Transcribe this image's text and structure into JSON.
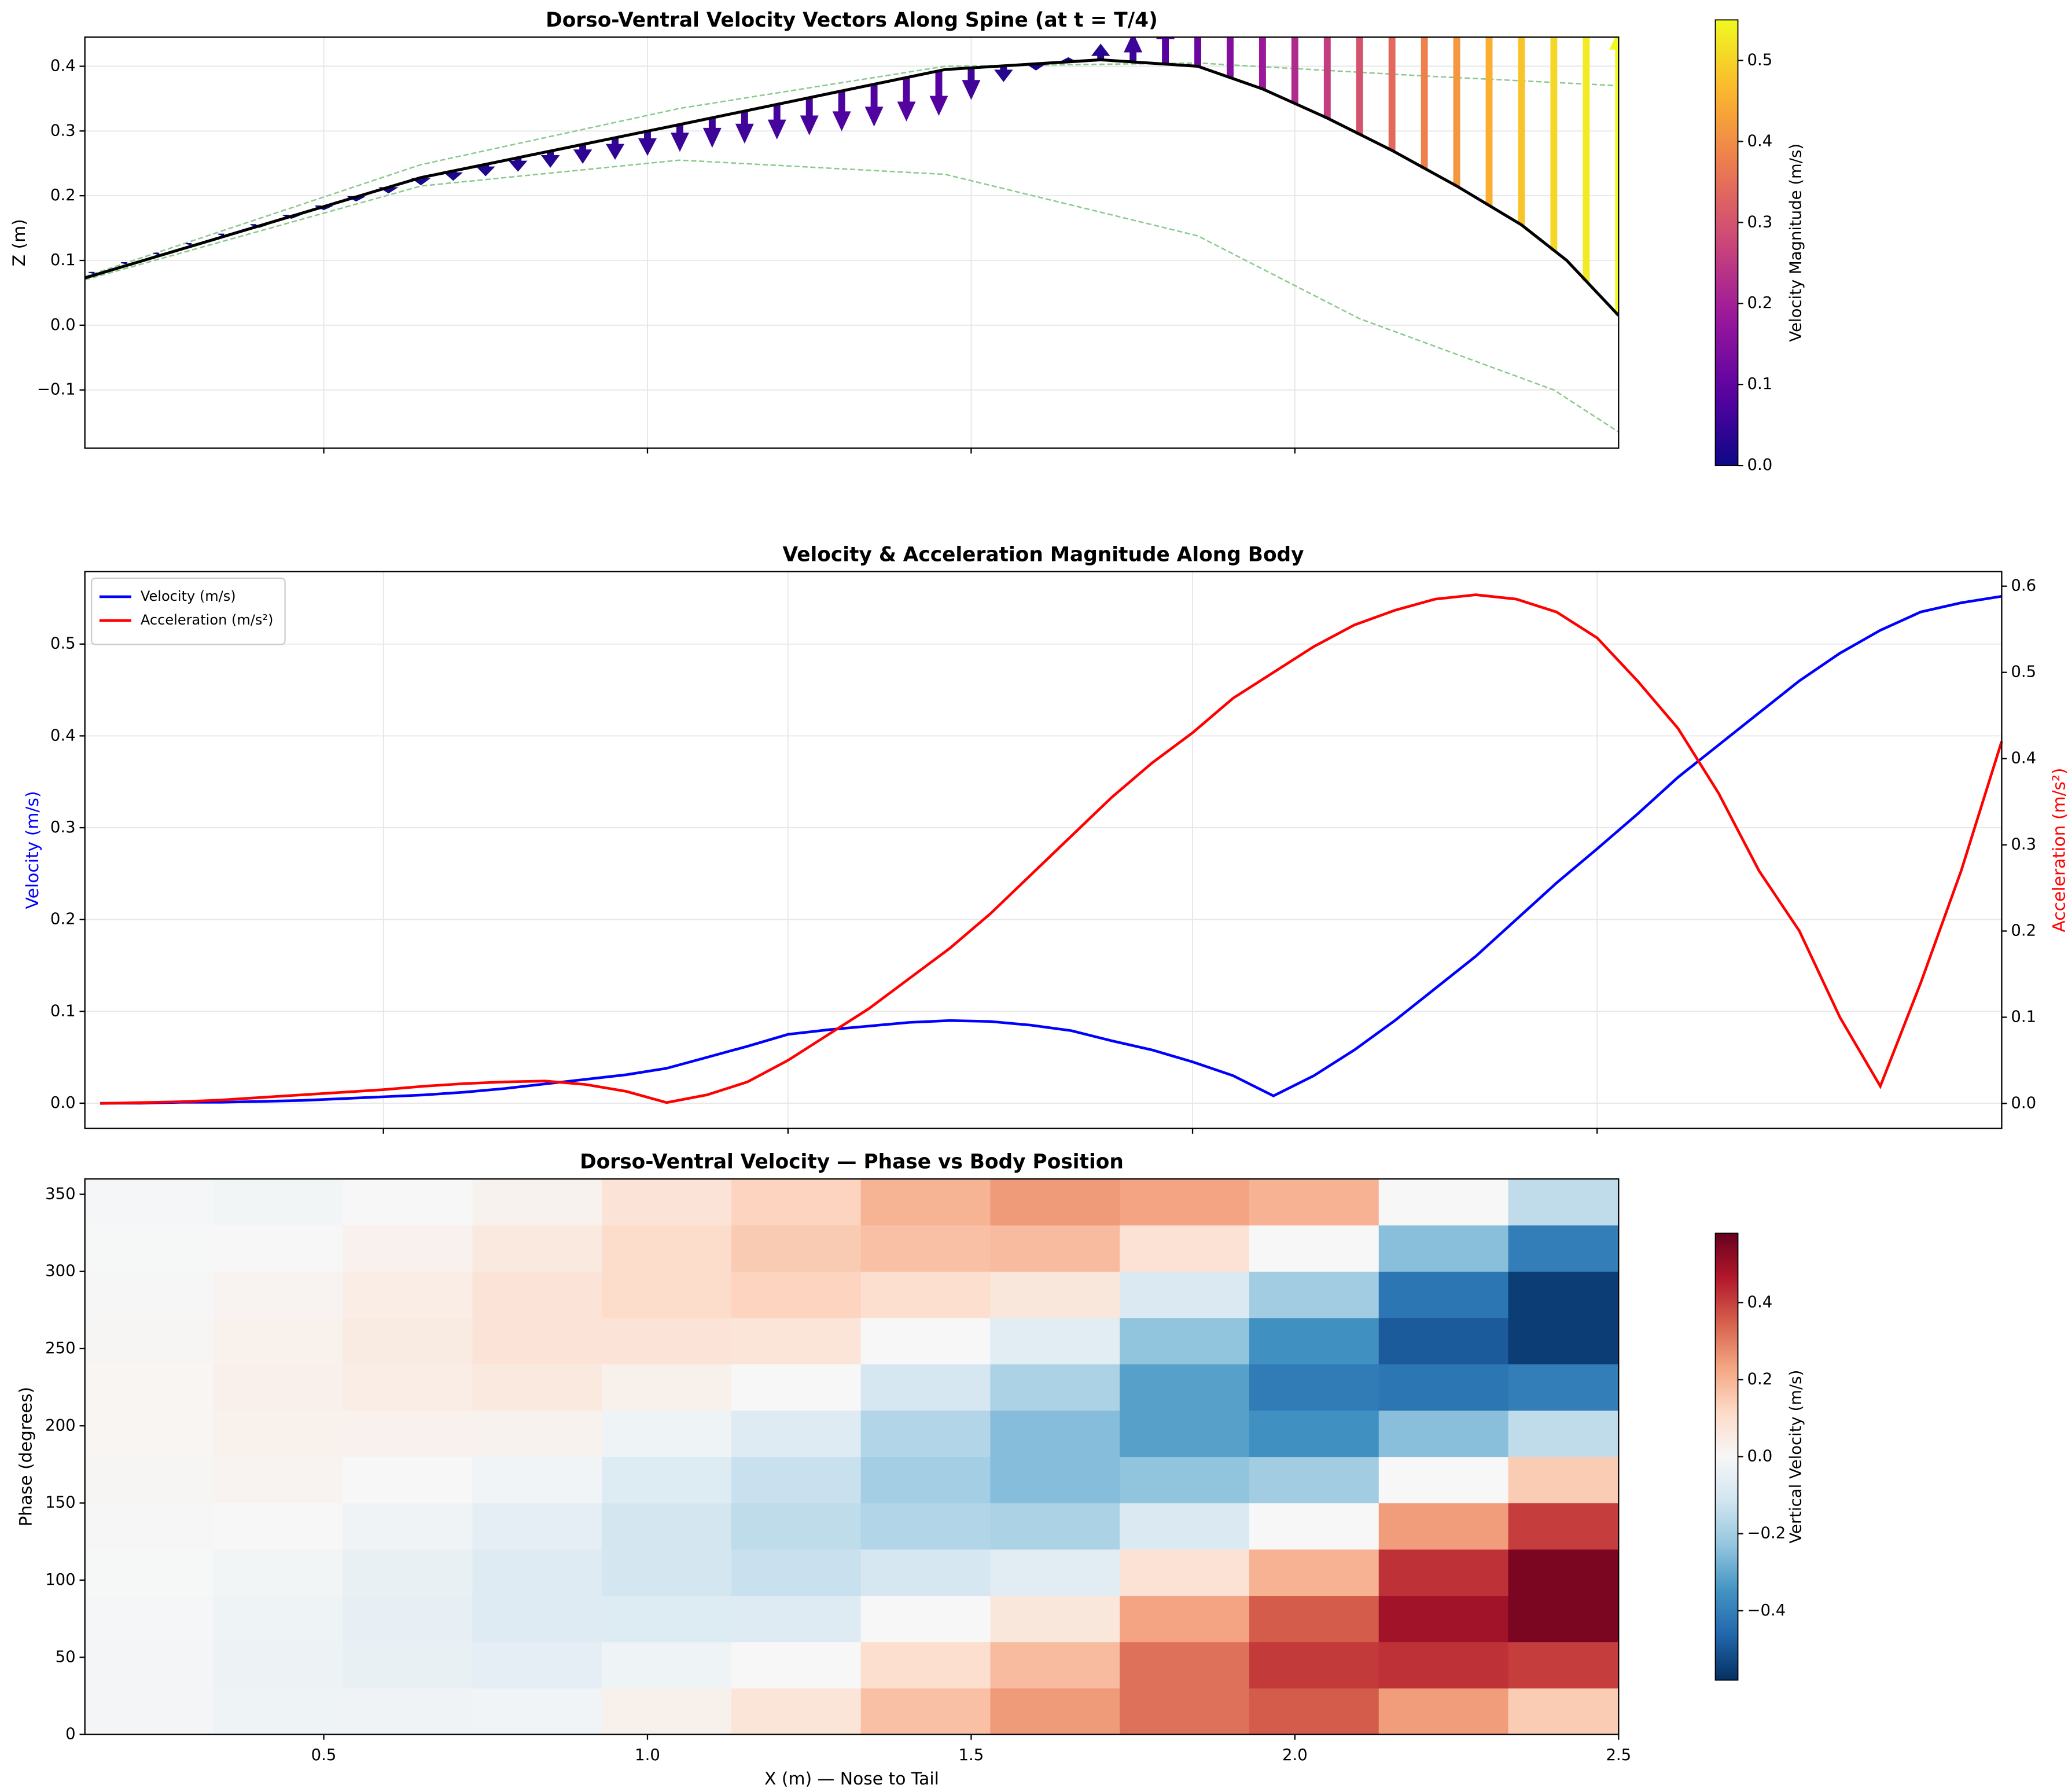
{
  "chart_data": [
    {
      "type": "quiver",
      "title": "Dorso-Ventral Velocity Vectors Along Spine (at t = T/4)",
      "ylabel": "Z (m)",
      "xlim": [
        0.131,
        2.5
      ],
      "ylim": [
        -0.19,
        0.445
      ],
      "xticks": [
        0.5,
        1,
        1.5,
        2
      ],
      "show_xtick_labels": false,
      "yticks": [
        {
          "value": -0.1,
          "label": "−0.1"
        },
        {
          "value": 0,
          "label": "0.0"
        },
        0.1,
        0.2,
        0.3,
        0.4
      ],
      "grid": true,
      "spine": {
        "color": "#000000",
        "x": [
          0.131,
          0.65,
          1.05,
          1.46,
          1.7,
          1.85,
          1.95,
          2.05,
          2.15,
          2.25,
          2.35,
          2.42,
          2.5
        ],
        "z": [
          0.073,
          0.228,
          0.31,
          0.395,
          0.41,
          0.4,
          0.365,
          0.32,
          0.27,
          0.215,
          0.155,
          0.1,
          0.015
        ]
      },
      "envelope_color": "#8cc98c",
      "envelope": [
        {
          "x": [
            0.131,
            0.65,
            1.05,
            1.46,
            1.85,
            2.2,
            2.5
          ],
          "z": [
            0.075,
            0.248,
            0.335,
            0.4,
            0.405,
            0.385,
            0.37
          ]
        },
        {
          "x": [
            0.131,
            0.65,
            1.05,
            1.46,
            1.85,
            2.1,
            2.4,
            2.5
          ],
          "z": [
            0.07,
            0.215,
            0.255,
            0.233,
            0.138,
            0.01,
            -0.1,
            -0.165
          ]
        }
      ],
      "arrows": {
        "x": [
          0.15,
          0.2,
          0.25,
          0.3,
          0.35,
          0.4,
          0.45,
          0.5,
          0.55,
          0.6,
          0.65,
          0.7,
          0.75,
          0.8,
          0.85,
          0.9,
          0.95,
          1.0,
          1.05,
          1.1,
          1.15,
          1.2,
          1.25,
          1.3,
          1.35,
          1.4,
          1.45,
          1.5,
          1.55,
          1.6,
          1.65,
          1.7,
          1.75,
          1.8,
          1.85,
          1.9,
          1.95,
          2.0,
          2.05,
          2.1,
          2.15,
          2.2,
          2.25,
          2.3,
          2.35,
          2.4,
          2.45,
          2.5
        ],
        "w": [
          0,
          0,
          -0.001,
          -0.001,
          -0.002,
          -0.003,
          -0.004,
          -0.006,
          -0.008,
          -0.011,
          -0.014,
          -0.018,
          -0.022,
          -0.026,
          -0.031,
          -0.036,
          -0.041,
          -0.046,
          -0.051,
          -0.056,
          -0.061,
          -0.066,
          -0.071,
          -0.076,
          -0.08,
          -0.083,
          -0.085,
          -0.06,
          -0.03,
          -0.012,
          0.008,
          0.03,
          0.055,
          0.085,
          0.115,
          0.15,
          0.185,
          0.22,
          0.26,
          0.3,
          0.34,
          0.38,
          0.415,
          0.45,
          0.48,
          0.505,
          0.53,
          0.55
        ]
      },
      "cmap": "plasma",
      "clim": [
        0,
        0.55
      ],
      "colorbar_label": "Velocity Magnitude (m/s)",
      "colorbar_ticks": [
        {
          "value": 0,
          "label": "0.0"
        },
        0.1,
        0.2,
        0.3,
        0.4,
        0.5
      ]
    },
    {
      "type": "line",
      "title": "Velocity & Acceleration Magnitude Along Body",
      "ylabel": "Velocity (m/s)",
      "y2label": "Acceleration (m/s²)",
      "x": [
        0.15,
        0.2,
        0.25,
        0.3,
        0.35,
        0.4,
        0.45,
        0.5,
        0.55,
        0.6,
        0.65,
        0.7,
        0.75,
        0.8,
        0.85,
        0.9,
        0.95,
        1.0,
        1.05,
        1.1,
        1.15,
        1.2,
        1.25,
        1.3,
        1.35,
        1.4,
        1.45,
        1.5,
        1.55,
        1.6,
        1.65,
        1.7,
        1.75,
        1.8,
        1.85,
        1.9,
        1.95,
        2.0,
        2.05,
        2.1,
        2.15,
        2.2,
        2.25,
        2.3,
        2.35,
        2.4,
        2.45,
        2.5
      ],
      "series": [
        {
          "name": "Velocity (m/s)",
          "color": "#0000ff",
          "values": [
            0,
            0,
            0.001,
            0.001,
            0.002,
            0.003,
            0.005,
            0.007,
            0.009,
            0.012,
            0.016,
            0.021,
            0.026,
            0.031,
            0.038,
            0.05,
            0.062,
            0.075,
            0.08,
            0.084,
            0.088,
            0.09,
            0.089,
            0.085,
            0.079,
            0.068,
            0.058,
            0.045,
            0.03,
            0.008,
            0.03,
            0.058,
            0.09,
            0.125,
            0.16,
            0.2,
            0.24,
            0.277,
            0.315,
            0.355,
            0.39,
            0.425,
            0.46,
            0.49,
            0.515,
            0.535,
            0.545,
            0.552
          ]
        },
        {
          "name": "Acceleration (m/s²)",
          "color": "#ff0000",
          "axis": "y2",
          "values": [
            0,
            0.001,
            0.002,
            0.004,
            0.007,
            0.01,
            0.013,
            0.016,
            0.02,
            0.023,
            0.025,
            0.026,
            0.022,
            0.014,
            0.001,
            0.01,
            0.025,
            0.05,
            0.08,
            0.11,
            0.145,
            0.18,
            0.22,
            0.265,
            0.31,
            0.355,
            0.395,
            0.43,
            0.47,
            0.5,
            0.53,
            0.555,
            0.572,
            0.585,
            0.59,
            0.585,
            0.57,
            0.54,
            0.49,
            0.435,
            0.36,
            0.27,
            0.2,
            0.1,
            0.02,
            0.14,
            0.27,
            0.42
          ]
        }
      ],
      "xlim": [
        0.131,
        2.5
      ],
      "ylim": [
        -0.0275,
        0.579
      ],
      "y2lim": [
        -0.029,
        0.617
      ],
      "xticks": [
        0.5,
        1,
        1.5,
        2
      ],
      "show_xtick_labels": false,
      "yticks": [
        {
          "value": 0,
          "label": "0.0"
        },
        0.1,
        0.2,
        0.3,
        0.4,
        0.5
      ],
      "y2ticks": [
        {
          "value": 0,
          "label": "0.0"
        },
        0.1,
        0.2,
        0.3,
        0.4,
        0.5,
        0.6
      ],
      "grid": true,
      "legend": "upper left"
    },
    {
      "type": "heatmap",
      "title": "Dorso-Ventral Velocity — Phase vs Body Position",
      "xlabel": "X (m) — Nose to Tail",
      "ylabel": "Phase (degrees)",
      "xbins": [
        0.131,
        0.33,
        0.53,
        0.73,
        0.93,
        1.13,
        1.33,
        1.53,
        1.73,
        1.93,
        2.13,
        2.33,
        2.5
      ],
      "ybins": [
        0,
        30,
        60,
        90,
        120,
        150,
        180,
        210,
        240,
        270,
        300,
        330,
        360
      ],
      "z": [
        [
          -0.01,
          -0.026,
          -0.025,
          -0.021,
          0.028,
          0.075,
          0.173,
          0.251,
          0.319,
          0.355,
          0.245,
          0.148
        ],
        [
          -0.01,
          -0.03,
          -0.043,
          -0.057,
          -0.028,
          0,
          0.1,
          0.184,
          0.319,
          0.41,
          0.424,
          0.403
        ],
        [
          -0.007,
          -0.026,
          -0.05,
          -0.077,
          -0.078,
          -0.075,
          0,
          0.067,
          0.233,
          0.355,
          0.49,
          0.551
        ],
        [
          -0.003,
          -0.015,
          -0.043,
          -0.077,
          -0.106,
          -0.13,
          -0.1,
          -0.067,
          0.085,
          0.205,
          0.424,
          0.551
        ],
        [
          0.003,
          0,
          -0.025,
          -0.057,
          -0.106,
          -0.15,
          -0.173,
          -0.184,
          -0.085,
          0,
          0.245,
          0.403
        ],
        [
          0.007,
          0.015,
          0,
          -0.021,
          -0.078,
          -0.13,
          -0.2,
          -0.251,
          -0.233,
          -0.205,
          0,
          0.148
        ],
        [
          0.01,
          0.026,
          0.025,
          0.021,
          -0.028,
          -0.075,
          -0.173,
          -0.251,
          -0.319,
          -0.355,
          -0.245,
          -0.148
        ],
        [
          0.01,
          0.03,
          0.043,
          0.057,
          0.028,
          0,
          -0.1,
          -0.184,
          -0.319,
          -0.41,
          -0.424,
          -0.403
        ],
        [
          0.007,
          0.026,
          0.05,
          0.077,
          0.078,
          0.075,
          0,
          -0.067,
          -0.233,
          -0.355,
          -0.49,
          -0.551
        ],
        [
          0.003,
          0.015,
          0.043,
          0.077,
          0.106,
          0.13,
          0.1,
          0.067,
          -0.085,
          -0.205,
          -0.424,
          -0.551
        ],
        [
          -0.003,
          0,
          0.025,
          0.057,
          0.106,
          0.15,
          0.173,
          0.184,
          0.085,
          0,
          -0.245,
          -0.403
        ],
        [
          -0.007,
          -0.015,
          0,
          0.021,
          0.078,
          0.13,
          0.2,
          0.251,
          0.233,
          0.205,
          0,
          -0.148
        ]
      ],
      "xlim": [
        0.131,
        2.5
      ],
      "ylim": [
        0,
        360
      ],
      "xticks": [
        0.5,
        {
          "value": 1,
          "label": "1.0"
        },
        1.5,
        {
          "value": 2,
          "label": "2.0"
        },
        2.5
      ],
      "yticks": [
        0,
        50,
        100,
        150,
        200,
        250,
        300,
        350
      ],
      "cmap": "RdBu_r",
      "clim": [
        -0.58,
        0.58
      ],
      "colorbar_label": "Vertical Velocity (m/s)",
      "colorbar_ticks": [
        {
          "value": -0.4,
          "label": "−0.4"
        },
        {
          "value": -0.2,
          "label": "−0.2"
        },
        {
          "value": 0,
          "label": "0.0"
        },
        0.2,
        0.4
      ]
    }
  ]
}
